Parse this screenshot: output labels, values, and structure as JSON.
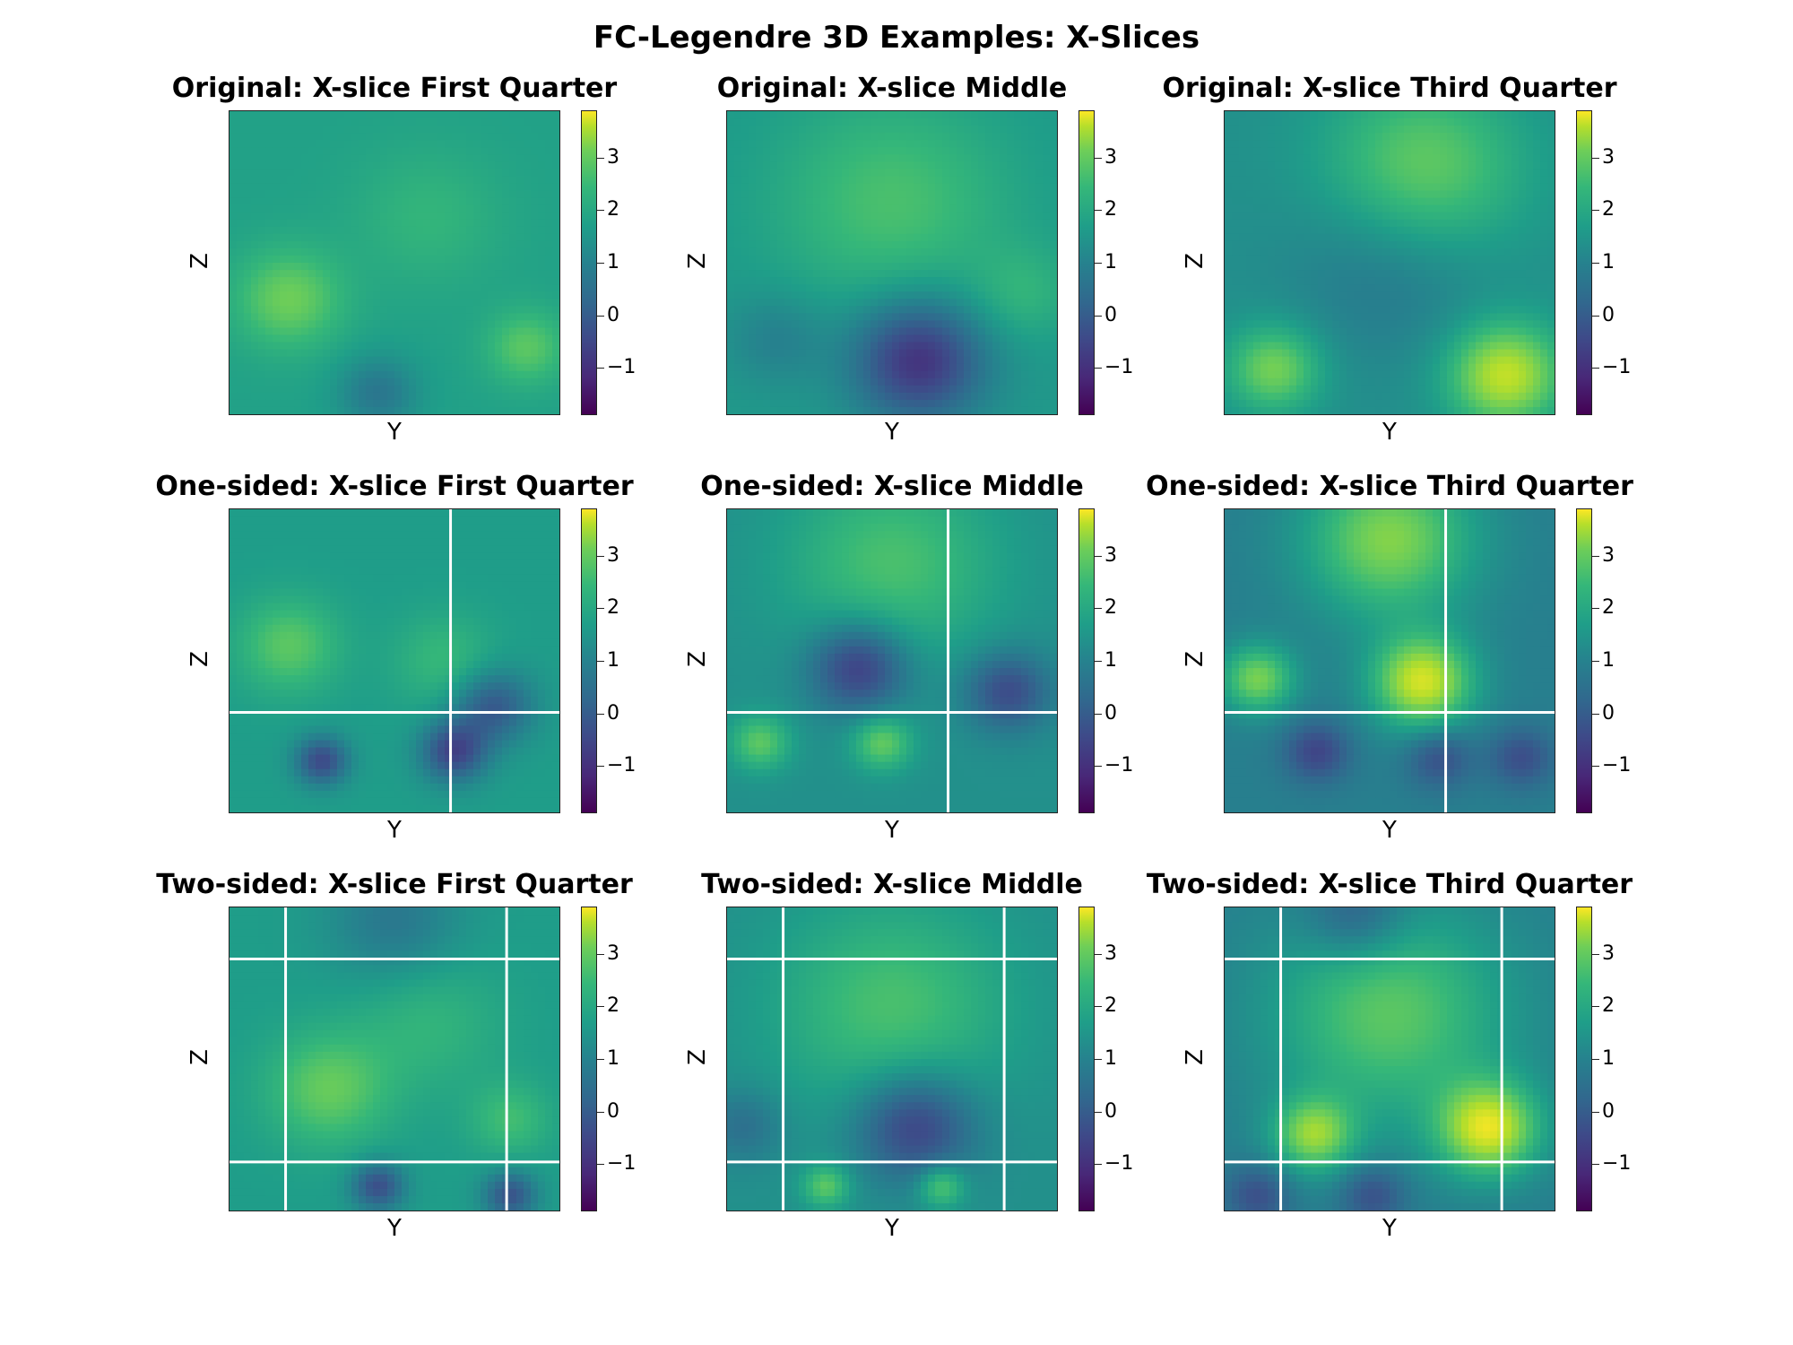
{
  "figure": {
    "title": "FC-Legendre 3D Examples: X-Slices"
  },
  "chart_data": [
    {
      "type": "heatmap",
      "title": "Original: X-slice First Quarter",
      "xlabel": "Y",
      "ylabel": "Z",
      "colormap": "viridis",
      "clim": [
        -1.9,
        3.9
      ],
      "colorbar_ticks": [
        -1,
        0,
        1,
        2,
        3
      ],
      "grid": false,
      "extension_lines": {
        "vertical": [],
        "horizontal": []
      },
      "blobs": [
        {
          "cx": 0.18,
          "cy": 0.62,
          "r": 0.16,
          "v": 2.6
        },
        {
          "cx": 0.6,
          "cy": 0.35,
          "r": 0.22,
          "v": 1.9
        },
        {
          "cx": 0.9,
          "cy": 0.78,
          "r": 0.12,
          "v": 2.4
        },
        {
          "cx": 0.45,
          "cy": 0.93,
          "r": 0.12,
          "v": 0.4
        },
        {
          "cx": 0.5,
          "cy": 0.15,
          "r": 0.35,
          "v": 1.4
        }
      ],
      "base": 1.4
    },
    {
      "type": "heatmap",
      "title": "Original: X-slice Middle",
      "xlabel": "Y",
      "ylabel": "Z",
      "colormap": "viridis",
      "clim": [
        -1.9,
        3.9
      ],
      "colorbar_ticks": [
        -1,
        0,
        1,
        2,
        3
      ],
      "grid": false,
      "extension_lines": {
        "vertical": [],
        "horizontal": []
      },
      "blobs": [
        {
          "cx": 0.5,
          "cy": 0.3,
          "r": 0.35,
          "v": 2.2
        },
        {
          "cx": 0.58,
          "cy": 0.82,
          "r": 0.2,
          "v": -1.1
        },
        {
          "cx": 0.15,
          "cy": 0.75,
          "r": 0.15,
          "v": 0.6
        },
        {
          "cx": 0.9,
          "cy": 0.6,
          "r": 0.15,
          "v": 1.8
        }
      ],
      "base": 1.2
    },
    {
      "type": "heatmap",
      "title": "Original: X-slice Third Quarter",
      "xlabel": "Y",
      "ylabel": "Z",
      "colormap": "viridis",
      "clim": [
        -1.9,
        3.9
      ],
      "colorbar_ticks": [
        -1,
        0,
        1,
        2,
        3
      ],
      "grid": false,
      "extension_lines": {
        "vertical": [],
        "horizontal": []
      },
      "blobs": [
        {
          "cx": 0.6,
          "cy": 0.2,
          "r": 0.3,
          "v": 2.6
        },
        {
          "cx": 0.15,
          "cy": 0.85,
          "r": 0.14,
          "v": 2.7
        },
        {
          "cx": 0.85,
          "cy": 0.87,
          "r": 0.17,
          "v": 3.4
        },
        {
          "cx": 0.5,
          "cy": 0.5,
          "r": 0.3,
          "v": 0.3
        }
      ],
      "base": 1.0
    },
    {
      "type": "heatmap",
      "title": "One-sided: X-slice First Quarter",
      "xlabel": "Y",
      "ylabel": "Z",
      "colormap": "viridis",
      "clim": [
        -1.9,
        3.9
      ],
      "colorbar_ticks": [
        -1,
        0,
        1,
        2,
        3
      ],
      "grid": false,
      "extension_lines": {
        "vertical": [
          0.67
        ],
        "horizontal": [
          0.67
        ]
      },
      "blobs": [
        {
          "cx": 0.18,
          "cy": 0.45,
          "r": 0.15,
          "v": 2.4
        },
        {
          "cx": 0.65,
          "cy": 0.5,
          "r": 0.15,
          "v": 2.0
        },
        {
          "cx": 0.28,
          "cy": 0.83,
          "r": 0.08,
          "v": -0.6
        },
        {
          "cx": 0.68,
          "cy": 0.8,
          "r": 0.1,
          "v": -0.7
        },
        {
          "cx": 0.8,
          "cy": 0.65,
          "r": 0.12,
          "v": -0.3
        }
      ],
      "base": 1.3
    },
    {
      "type": "heatmap",
      "title": "One-sided: X-slice Middle",
      "xlabel": "Y",
      "ylabel": "Z",
      "colormap": "viridis",
      "clim": [
        -1.9,
        3.9
      ],
      "colorbar_ticks": [
        -1,
        0,
        1,
        2,
        3
      ],
      "grid": false,
      "extension_lines": {
        "vertical": [
          0.67
        ],
        "horizontal": [
          0.67
        ]
      },
      "blobs": [
        {
          "cx": 0.5,
          "cy": 0.18,
          "r": 0.32,
          "v": 2.2
        },
        {
          "cx": 0.4,
          "cy": 0.52,
          "r": 0.15,
          "v": -1.0
        },
        {
          "cx": 0.85,
          "cy": 0.6,
          "r": 0.13,
          "v": -0.6
        },
        {
          "cx": 0.1,
          "cy": 0.77,
          "r": 0.09,
          "v": 2.4
        },
        {
          "cx": 0.47,
          "cy": 0.77,
          "r": 0.09,
          "v": 2.5
        }
      ],
      "base": 1.0
    },
    {
      "type": "heatmap",
      "title": "One-sided: X-slice Third Quarter",
      "xlabel": "Y",
      "ylabel": "Z",
      "colormap": "viridis",
      "clim": [
        -1.9,
        3.9
      ],
      "colorbar_ticks": [
        -1,
        0,
        1,
        2,
        3
      ],
      "grid": false,
      "extension_lines": {
        "vertical": [
          0.67
        ],
        "horizontal": [
          0.67
        ]
      },
      "blobs": [
        {
          "cx": 0.5,
          "cy": 0.1,
          "r": 0.25,
          "v": 2.8
        },
        {
          "cx": 0.1,
          "cy": 0.56,
          "r": 0.11,
          "v": 2.7
        },
        {
          "cx": 0.6,
          "cy": 0.57,
          "r": 0.15,
          "v": 3.5
        },
        {
          "cx": 0.28,
          "cy": 0.8,
          "r": 0.1,
          "v": -0.7
        },
        {
          "cx": 0.65,
          "cy": 0.82,
          "r": 0.1,
          "v": -0.5
        },
        {
          "cx": 0.9,
          "cy": 0.82,
          "r": 0.1,
          "v": -0.5
        }
      ],
      "base": 0.6
    },
    {
      "type": "heatmap",
      "title": "Two-sided: X-slice First Quarter",
      "xlabel": "Y",
      "ylabel": "Z",
      "colormap": "viridis",
      "clim": [
        -1.9,
        3.9
      ],
      "colorbar_ticks": [
        -1,
        0,
        1,
        2,
        3
      ],
      "grid": false,
      "extension_lines": {
        "vertical": [
          0.17,
          0.84
        ],
        "horizontal": [
          0.17,
          0.84
        ]
      },
      "blobs": [
        {
          "cx": 0.3,
          "cy": 0.6,
          "r": 0.18,
          "v": 2.5
        },
        {
          "cx": 0.6,
          "cy": 0.38,
          "r": 0.22,
          "v": 1.9
        },
        {
          "cx": 0.85,
          "cy": 0.7,
          "r": 0.12,
          "v": 2.1
        },
        {
          "cx": 0.5,
          "cy": 0.05,
          "r": 0.2,
          "v": 0.4
        },
        {
          "cx": 0.45,
          "cy": 0.92,
          "r": 0.08,
          "v": -0.5
        },
        {
          "cx": 0.85,
          "cy": 0.95,
          "r": 0.08,
          "v": -0.4
        }
      ],
      "base": 1.3
    },
    {
      "type": "heatmap",
      "title": "Two-sided: X-slice Middle",
      "xlabel": "Y",
      "ylabel": "Z",
      "colormap": "viridis",
      "clim": [
        -1.9,
        3.9
      ],
      "colorbar_ticks": [
        -1,
        0,
        1,
        2,
        3
      ],
      "grid": false,
      "extension_lines": {
        "vertical": [
          0.17,
          0.84
        ],
        "horizontal": [
          0.17,
          0.84
        ]
      },
      "blobs": [
        {
          "cx": 0.5,
          "cy": 0.33,
          "r": 0.35,
          "v": 2.2
        },
        {
          "cx": 0.57,
          "cy": 0.72,
          "r": 0.18,
          "v": -0.9
        },
        {
          "cx": 0.05,
          "cy": 0.72,
          "r": 0.12,
          "v": 0.2
        },
        {
          "cx": 0.3,
          "cy": 0.92,
          "r": 0.07,
          "v": 2.4
        },
        {
          "cx": 0.65,
          "cy": 0.92,
          "r": 0.07,
          "v": 2.5
        }
      ],
      "base": 1.0
    },
    {
      "type": "heatmap",
      "title": "Two-sided: X-slice Third Quarter",
      "xlabel": "Y",
      "ylabel": "Z",
      "colormap": "viridis",
      "clim": [
        -1.9,
        3.9
      ],
      "colorbar_ticks": [
        -1,
        0,
        1,
        2,
        3
      ],
      "grid": false,
      "extension_lines": {
        "vertical": [
          0.17,
          0.84
        ],
        "horizontal": [
          0.17,
          0.84
        ]
      },
      "blobs": [
        {
          "cx": 0.5,
          "cy": 0.35,
          "r": 0.35,
          "v": 2.4
        },
        {
          "cx": 0.27,
          "cy": 0.75,
          "r": 0.12,
          "v": 2.8
        },
        {
          "cx": 0.8,
          "cy": 0.73,
          "r": 0.15,
          "v": 3.5
        },
        {
          "cx": 0.4,
          "cy": 0.03,
          "r": 0.15,
          "v": -0.5
        },
        {
          "cx": 0.1,
          "cy": 0.95,
          "r": 0.1,
          "v": -0.5
        },
        {
          "cx": 0.45,
          "cy": 0.95,
          "r": 0.1,
          "v": -0.5
        }
      ],
      "base": 0.6
    }
  ]
}
